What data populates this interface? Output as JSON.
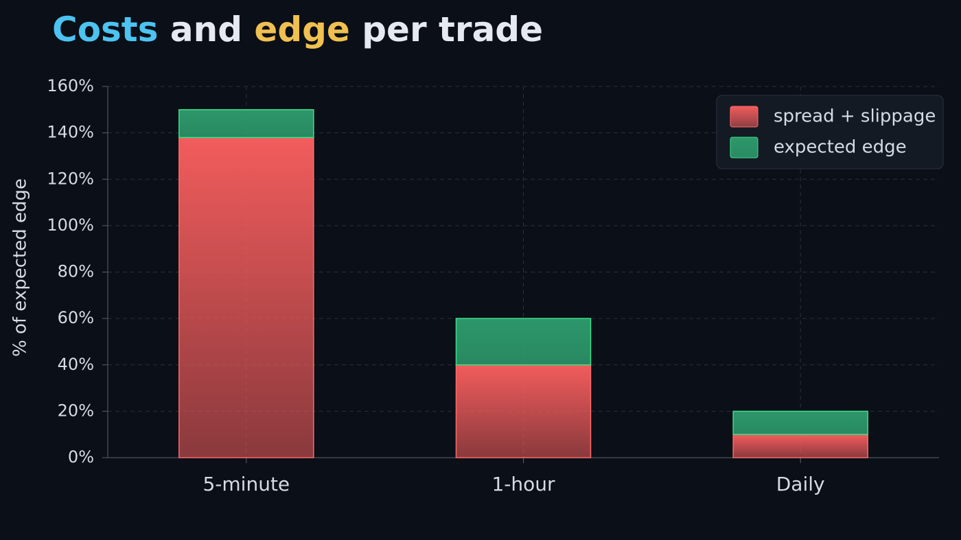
{
  "chart_data": {
    "type": "stacked-bar",
    "title": [
      "Costs",
      " and ",
      "edge",
      " per trade"
    ],
    "title_colors": [
      "#4cc3f0",
      "#e6e9f0",
      "#f0c050",
      "#e6e9f0"
    ],
    "y_label": "% of expected edge",
    "categories": [
      "5-minute",
      "1-hour",
      "Daily"
    ],
    "series": [
      {
        "name": "spread + slippage",
        "color": "#f25c5c",
        "values": [
          138,
          40,
          10
        ]
      },
      {
        "name": "expected edge",
        "color": "#2e9e6e",
        "values": [
          12,
          20,
          10
        ]
      }
    ],
    "ylim": [
      0,
      160
    ],
    "yticks": [
      {
        "value": 0,
        "label": "0%"
      },
      {
        "value": 20,
        "label": "20%"
      },
      {
        "value": 40,
        "label": "40%"
      },
      {
        "value": 60,
        "label": "60%"
      },
      {
        "value": 80,
        "label": "80%"
      },
      {
        "value": 100,
        "label": "100%"
      },
      {
        "value": 120,
        "label": "120%"
      },
      {
        "value": 140,
        "label": "140%"
      },
      {
        "value": 160,
        "label": "160%"
      }
    ],
    "grid": true,
    "legend": "top-right"
  }
}
